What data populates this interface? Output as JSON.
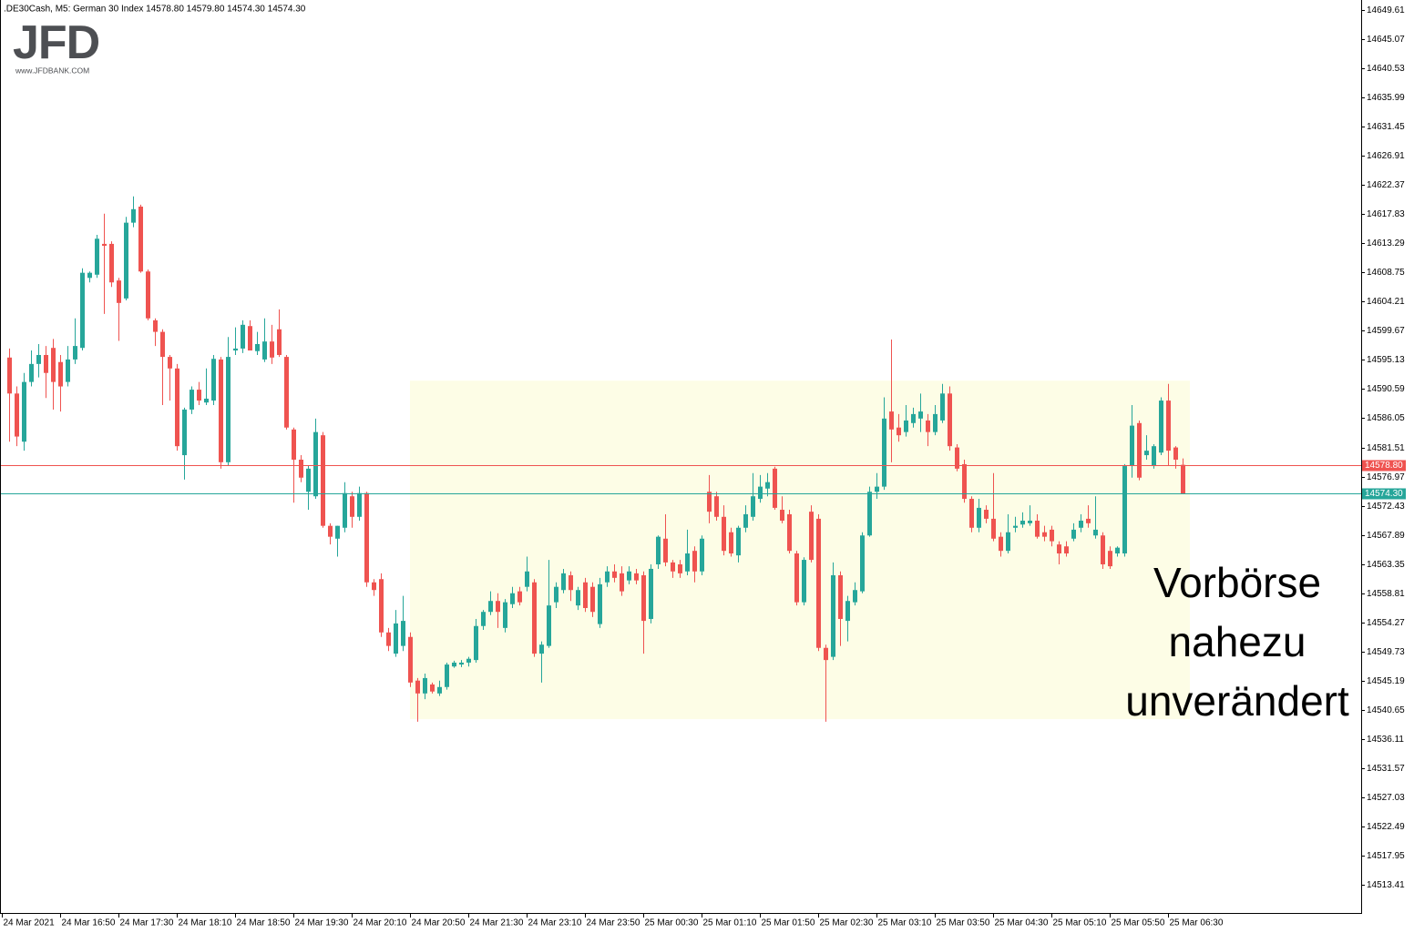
{
  "chart_data": {
    "type": "candlestick",
    "title": ".DE30Cash, M5:  German 30 Index  14578.80 14579.80 14574.30 14574.30",
    "logo": {
      "name": "JFD",
      "url": "www.JFDBANK.COM"
    },
    "annotation": [
      "Vorbörse",
      "nahezu",
      "unverändert"
    ],
    "up_color": "#26a69a",
    "down_color": "#ef5350",
    "ylim": [
      14509.02,
      14651.17
    ],
    "yticks": [
      14649.61,
      14645.07,
      14640.53,
      14635.99,
      14631.45,
      14626.91,
      14622.37,
      14617.83,
      14613.29,
      14608.75,
      14604.21,
      14599.67,
      14595.13,
      14590.59,
      14586.05,
      14581.51,
      14576.97,
      14572.43,
      14567.89,
      14563.35,
      14558.81,
      14554.27,
      14549.73,
      14545.19,
      14540.65,
      14536.11,
      14531.57,
      14527.03,
      14522.49,
      14517.95,
      14513.41
    ],
    "hlines": [
      {
        "value": 14578.8,
        "label": "14578.80",
        "color": "#ef5350"
      },
      {
        "value": 14574.3,
        "label": "14574.30",
        "color": "#26a69a"
      }
    ],
    "highlight": {
      "ylim": [
        14539.2,
        14591.9
      ],
      "from": 56,
      "to": 163,
      "color": "#fdfde6"
    },
    "categories": [
      "24 Mar 2021",
      null,
      null,
      null,
      null,
      null,
      null,
      null,
      "24 Mar 16:50",
      null,
      null,
      null,
      null,
      null,
      null,
      null,
      "24 Mar 17:30",
      null,
      null,
      null,
      null,
      null,
      null,
      null,
      "24 Mar 18:10",
      null,
      null,
      null,
      null,
      null,
      null,
      null,
      "24 Mar 18:50",
      null,
      null,
      null,
      null,
      null,
      null,
      null,
      "24 Mar 19:30",
      null,
      null,
      null,
      null,
      null,
      null,
      null,
      "24 Mar 20:10",
      null,
      null,
      null,
      null,
      null,
      null,
      null,
      "24 Mar 20:50",
      null,
      null,
      null,
      null,
      null,
      null,
      null,
      "24 Mar 21:30",
      null,
      null,
      null,
      null,
      null,
      null,
      null,
      "24 Mar 23:10",
      null,
      null,
      null,
      null,
      null,
      null,
      null,
      "24 Mar 23:50",
      null,
      null,
      null,
      null,
      null,
      null,
      null,
      "25 Mar 00:30",
      null,
      null,
      null,
      null,
      null,
      null,
      null,
      "25 Mar 01:10",
      null,
      null,
      null,
      null,
      null,
      null,
      null,
      "25 Mar 01:50",
      null,
      null,
      null,
      null,
      null,
      null,
      null,
      "25 Mar 02:30",
      null,
      null,
      null,
      null,
      null,
      null,
      null,
      "25 Mar 03:10",
      null,
      null,
      null,
      null,
      null,
      null,
      null,
      "25 Mar 03:50",
      null,
      null,
      null,
      null,
      null,
      null,
      null,
      "25 Mar 04:30",
      null,
      null,
      null,
      null,
      null,
      null,
      null,
      "25 Mar 05:10",
      null,
      null,
      null,
      null,
      null,
      null,
      null,
      "25 Mar 05:50",
      null,
      null,
      null,
      null,
      null,
      null,
      null,
      "25 Mar 06:30",
      null,
      null
    ],
    "open": [
      null,
      14595.5,
      14589.9,
      14582.4,
      14591.7,
      14594.5,
      14595.9,
      14597.0,
      14594.8,
      14591.7,
      14595.2,
      14597.0,
      14607.9,
      14608.4,
      14613.2,
      14613.2,
      14607.5,
      14604.7,
      14616.5,
      14619.0,
      14608.9,
      14601.3,
      14599.5,
      14595.6,
      14593.8,
      14580.3,
      14587.4,
      14590.5,
      14588.5,
      14588.8,
      14595.2,
      14579.2,
      14596.6,
      14596.9,
      14600.4,
      14596.5,
      14595.2,
      14598.0,
      14599.9,
      14595.6,
      14584.3,
      14579.6,
      14574.6,
      14573.9,
      14583.4,
      14569.3,
      14567.3,
      14569.0,
      14573.9,
      14570.7,
      14574.4,
      14560.5,
      14561.0,
      14552.7,
      14549.4,
      14550.6,
      14552.0,
      14545.2,
      14543.2,
      14544.6,
      14543.2,
      14544.2,
      14547.4,
      14547.7,
      14548.0,
      14548.4,
      14553.7,
      14555.9,
      14557.6,
      14553.4,
      14557.1,
      14559.1,
      14559.8,
      14560.5,
      14549.4,
      14550.6,
      14557.4,
      14559.3,
      14561.6,
      14556.9,
      14560.5,
      14559.8,
      14554.0,
      14560.5,
      14562.2,
      14561.9,
      14560.8,
      14561.9,
      14561.6,
      14554.8,
      14563.3,
      14567.3,
      14563.6,
      14563.3,
      14562.2,
      14565.4,
      14562.2,
      14574.6,
      14573.9,
      14570.7,
      14568.3,
      14564.7,
      14569.0,
      14570.7,
      14573.5,
      14575.1,
      14578.2,
      14571.8,
      14571.1,
      14565.0,
      14557.4,
      14571.5,
      14570.4,
      14550.3,
      14548.9,
      14561.6,
      14554.5,
      14557.4,
      14559.1,
      14567.8,
      14574.6,
      14575.4,
      14587.1,
      14584.6,
      14583.9,
      14585.3,
      14586.0,
      14585.7,
      14583.9,
      14585.7,
      14589.9,
      14581.5,
      14578.9,
      14573.5,
      14569.0,
      14571.8,
      14570.4,
      14567.6,
      14565.4,
      14569.0,
      14569.5,
      14569.7,
      14570.1,
      14568.3,
      14568.7,
      14566.4,
      14566.1,
      14567.3,
      14569.0,
      14570.4,
      14567.8,
      14567.8,
      14565.4,
      14565.0,
      14565.0,
      14578.6,
      14585.3,
      14580.3,
      14578.6,
      14580.7,
      14588.8,
      14581.5,
      14578.8
    ],
    "high": [
      null,
      14596.9,
      14591.0,
      14593.1,
      14596.6,
      14597.6,
      14597.3,
      14598.4,
      14595.9,
      14597.3,
      14601.6,
      14609.4,
      14608.9,
      14614.6,
      14617.9,
      14613.6,
      14607.9,
      14617.4,
      14620.6,
      14619.3,
      14609.2,
      14601.6,
      14599.9,
      14595.9,
      14594.5,
      14587.7,
      14591.0,
      14591.7,
      14593.8,
      14595.9,
      14595.6,
      14598.7,
      14600.2,
      14601.3,
      14601.3,
      14599.5,
      14601.6,
      14600.6,
      14603.0,
      14595.9,
      14584.6,
      14580.3,
      14578.6,
      14586.0,
      14583.9,
      14569.7,
      14569.3,
      14576.1,
      14574.6,
      14575.4,
      14574.6,
      14561.0,
      14561.9,
      14553.4,
      14556.2,
      14558.4,
      14552.7,
      14545.6,
      14546.3,
      14544.9,
      14545.2,
      14548.0,
      14548.3,
      14548.4,
      14548.9,
      14554.8,
      14556.2,
      14559.1,
      14558.8,
      14557.9,
      14559.8,
      14559.8,
      14564.5,
      14561.0,
      14551.3,
      14564.0,
      14560.5,
      14562.6,
      14562.2,
      14559.8,
      14561.2,
      14560.5,
      14561.2,
      14563.0,
      14563.3,
      14563.0,
      14563.0,
      14562.6,
      14562.2,
      14563.3,
      14567.8,
      14571.1,
      14564.0,
      14564.0,
      14568.7,
      14566.1,
      14567.8,
      14577.2,
      14574.6,
      14572.5,
      14569.0,
      14569.3,
      14572.5,
      14577.5,
      14577.2,
      14577.5,
      14578.5,
      14573.9,
      14571.8,
      14565.4,
      14564.4,
      14572.5,
      14571.1,
      14550.8,
      14563.6,
      14562.2,
      14558.4,
      14560.5,
      14568.3,
      14575.4,
      14577.5,
      14589.3,
      14598.3,
      14586.7,
      14588.1,
      14587.7,
      14589.9,
      14586.7,
      14588.1,
      14591.4,
      14591.0,
      14582.0,
      14579.6,
      14573.9,
      14573.5,
      14572.5,
      14577.5,
      14568.3,
      14571.1,
      14570.7,
      14571.4,
      14572.5,
      14571.1,
      14569.3,
      14569.3,
      14566.9,
      14566.9,
      14569.7,
      14571.1,
      14572.5,
      14573.9,
      14568.3,
      14566.1,
      14566.1,
      14578.9,
      14588.1,
      14585.7,
      14583.4,
      14582.0,
      14589.3,
      14591.4,
      14581.7,
      14579.8
    ],
    "low": [
      null,
      14582.4,
      14581.7,
      14581.0,
      14591.0,
      14592.4,
      14589.2,
      14587.4,
      14587.1,
      14591.0,
      14594.5,
      14596.6,
      14607.2,
      14607.9,
      14602.3,
      14606.5,
      14598.1,
      14604.4,
      14615.8,
      14608.7,
      14601.3,
      14597.3,
      14588.1,
      14588.8,
      14581.0,
      14576.5,
      14586.7,
      14588.1,
      14588.1,
      14588.1,
      14578.2,
      14578.6,
      14595.9,
      14596.2,
      14596.6,
      14595.9,
      14594.8,
      14594.5,
      14595.6,
      14584.3,
      14572.9,
      14576.1,
      14571.8,
      14573.5,
      14569.0,
      14566.4,
      14564.5,
      14568.3,
      14569.0,
      14570.1,
      14559.8,
      14558.4,
      14552.0,
      14549.8,
      14548.9,
      14549.8,
      14544.2,
      14538.8,
      14542.3,
      14543.2,
      14542.8,
      14543.8,
      14547.2,
      14547.3,
      14547.4,
      14548.0,
      14553.1,
      14555.4,
      14553.4,
      14552.7,
      14556.5,
      14556.9,
      14559.1,
      14548.9,
      14544.9,
      14550.3,
      14556.5,
      14558.8,
      14557.6,
      14556.2,
      14555.9,
      14555.1,
      14553.4,
      14559.8,
      14560.5,
      14558.4,
      14560.2,
      14560.2,
      14549.4,
      14554.1,
      14562.6,
      14563.0,
      14561.2,
      14561.2,
      14561.6,
      14560.5,
      14561.6,
      14569.7,
      14570.1,
      14564.7,
      14564.5,
      14563.6,
      14568.3,
      14570.1,
      14572.9,
      14573.9,
      14571.8,
      14569.7,
      14565.0,
      14556.9,
      14556.9,
      14563.6,
      14549.8,
      14538.8,
      14548.4,
      14550.6,
      14551.3,
      14556.9,
      14558.8,
      14567.6,
      14573.5,
      14574.9,
      14579.2,
      14582.4,
      14583.2,
      14584.6,
      14583.9,
      14581.7,
      14583.4,
      14585.3,
      14581.0,
      14577.8,
      14572.9,
      14568.3,
      14568.3,
      14569.7,
      14566.9,
      14564.5,
      14565.0,
      14568.3,
      14569.0,
      14569.3,
      14567.3,
      14566.9,
      14566.1,
      14563.3,
      14564.5,
      14566.9,
      14568.3,
      14569.0,
      14567.3,
      14562.6,
      14562.6,
      14564.5,
      14564.5,
      14576.8,
      14576.4,
      14579.6,
      14578.2,
      14580.3,
      14578.6,
      14578.2,
      14574.3
    ],
    "close": [
      null,
      14589.9,
      14583.2,
      14591.7,
      14594.5,
      14595.9,
      14593.1,
      14591.7,
      14591.0,
      14595.2,
      14597.3,
      14608.7,
      14608.7,
      14614.0,
      14612.9,
      14607.2,
      14604.0,
      14616.5,
      14618.6,
      14608.9,
      14601.6,
      14599.5,
      14595.6,
      14593.8,
      14581.7,
      14587.4,
      14590.5,
      14588.8,
      14589.1,
      14595.3,
      14579.2,
      14595.6,
      14596.9,
      14600.6,
      14596.6,
      14597.6,
      14598.0,
      14595.5,
      14595.9,
      14584.6,
      14579.6,
      14576.8,
      14578.2,
      14583.9,
      14569.3,
      14567.6,
      14569.3,
      14574.4,
      14570.7,
      14574.4,
      14560.5,
      14559.3,
      14552.7,
      14550.6,
      14554.1,
      14554.5,
      14544.9,
      14543.2,
      14545.6,
      14543.5,
      14544.2,
      14547.7,
      14548.0,
      14548.0,
      14548.6,
      14553.7,
      14555.9,
      14557.6,
      14555.9,
      14557.4,
      14558.8,
      14557.4,
      14562.2,
      14549.4,
      14550.8,
      14556.9,
      14559.8,
      14561.9,
      14559.3,
      14559.3,
      14556.5,
      14555.9,
      14560.2,
      14562.2,
      14561.2,
      14559.1,
      14562.2,
      14560.8,
      14554.5,
      14562.6,
      14567.6,
      14563.6,
      14562.2,
      14561.9,
      14565.0,
      14562.2,
      14567.3,
      14571.5,
      14570.7,
      14565.4,
      14565.0,
      14569.0,
      14571.1,
      14573.9,
      14575.4,
      14576.1,
      14572.1,
      14570.1,
      14565.4,
      14557.4,
      14564.0,
      14564.0,
      14550.3,
      14548.4,
      14561.6,
      14554.8,
      14557.6,
      14559.3,
      14567.8,
      14574.6,
      14575.4,
      14586.0,
      14584.3,
      14583.4,
      14585.7,
      14586.7,
      14587.1,
      14583.9,
      14586.7,
      14589.9,
      14581.7,
      14578.2,
      14573.5,
      14569.0,
      14572.1,
      14570.4,
      14567.3,
      14565.4,
      14568.3,
      14569.3,
      14570.1,
      14570.1,
      14567.6,
      14567.6,
      14566.9,
      14565.0,
      14565.0,
      14568.7,
      14570.1,
      14569.7,
      14568.7,
      14563.3,
      14563.0,
      14565.9,
      14578.6,
      14584.9,
      14576.8,
      14581.0,
      14581.7,
      14588.8,
      14581.0,
      14579.6,
      14574.3
    ]
  }
}
